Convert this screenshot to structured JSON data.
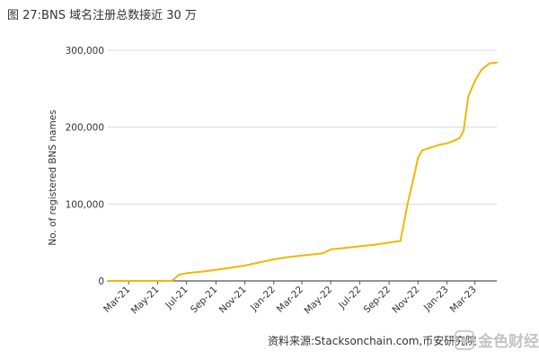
{
  "figure": {
    "title": "图 27:BNS 域名注册总数接近 30 万",
    "source": "资料来源:Stacksonchain.com,币安研究院",
    "watermark": "金色财经"
  },
  "colors": {
    "line": "#f2b705",
    "grid": "#d9d9d9",
    "axis": "#555555",
    "text": "#333333"
  },
  "chart_data": {
    "type": "line",
    "title": "",
    "xlabel": "",
    "ylabel": "No. of registered BNS names",
    "ylim": [
      0,
      300000
    ],
    "yticks": [
      0,
      100000,
      200000,
      300000
    ],
    "ytick_labels": [
      "0",
      "100,000",
      "200,000",
      "300,000"
    ],
    "xlim": [
      "2021-01-16",
      "2023-04-16"
    ],
    "xticks": [
      "2021-03-01",
      "2021-05-01",
      "2021-07-01",
      "2021-09-01",
      "2021-11-01",
      "2022-01-01",
      "2022-03-01",
      "2022-05-01",
      "2022-07-01",
      "2022-09-01",
      "2022-11-01",
      "2023-01-01",
      "2023-03-01"
    ],
    "xtick_labels": [
      "Mar-21",
      "May-21",
      "Jul-21",
      "Sep-21",
      "Nov-21",
      "Jan-22",
      "Mar-22",
      "May-22",
      "Jul-22",
      "Sep-22",
      "Nov-22",
      "Jan-23",
      "Mar-23"
    ],
    "grid": "horizontal",
    "series": [
      {
        "name": "",
        "x": [
          "2021-01-16",
          "2021-05-31",
          "2021-06-15",
          "2021-07-01",
          "2021-08-01",
          "2021-09-01",
          "2021-10-01",
          "2021-11-01",
          "2021-12-01",
          "2022-01-01",
          "2022-02-01",
          "2022-03-01",
          "2022-04-01",
          "2022-04-15",
          "2022-05-01",
          "2022-06-01",
          "2022-07-01",
          "2022-08-01",
          "2022-09-01",
          "2022-09-25",
          "2022-10-10",
          "2022-10-25",
          "2022-11-01",
          "2022-11-10",
          "2022-11-20",
          "2022-12-01",
          "2022-12-15",
          "2023-01-01",
          "2023-01-15",
          "2023-01-28",
          "2023-02-05",
          "2023-02-15",
          "2023-03-01",
          "2023-03-15",
          "2023-04-01",
          "2023-04-16"
        ],
        "y": [
          0,
          0,
          8000,
          10000,
          12000,
          14500,
          17000,
          20000,
          24000,
          28000,
          31000,
          33000,
          35000,
          36000,
          41000,
          43000,
          45000,
          47000,
          50000,
          52000,
          100000,
          140000,
          160000,
          170000,
          172000,
          174000,
          177000,
          179000,
          182000,
          186000,
          195000,
          240000,
          260000,
          275000,
          283000,
          284000
        ]
      }
    ]
  }
}
